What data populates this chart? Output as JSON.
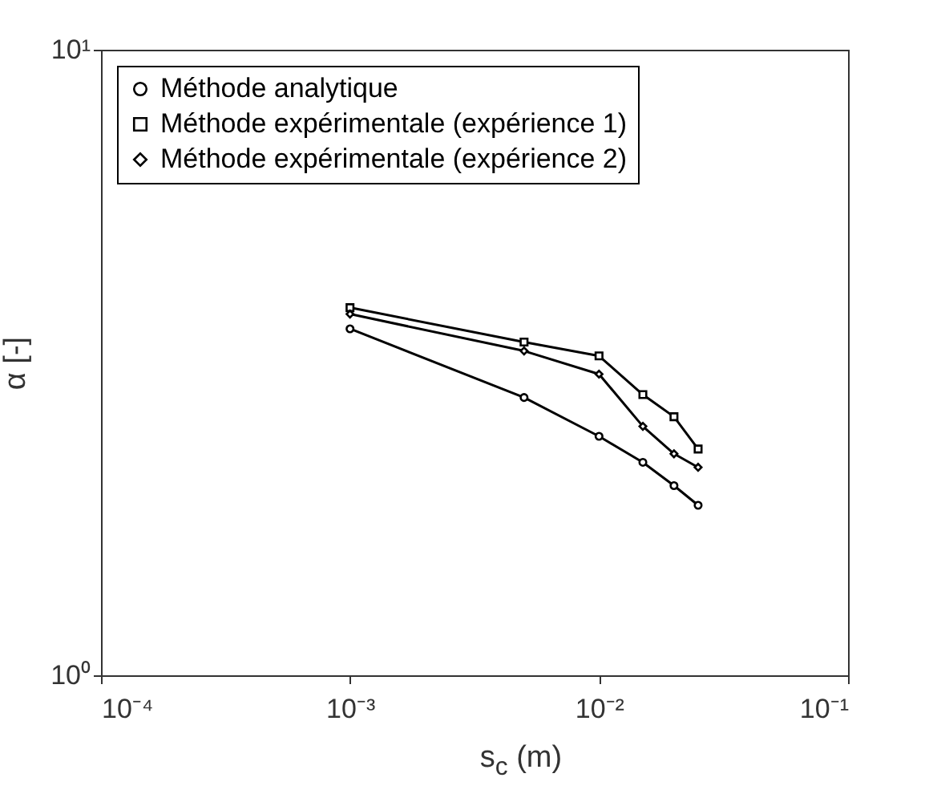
{
  "chart_data": {
    "type": "line",
    "xlabel": "s$_{c}$ (m)",
    "ylabel": "α [-]",
    "log": "xy",
    "grid": false,
    "legend": "top left",
    "xlim": [
      0.0001,
      0.1
    ],
    "ylim": [
      1,
      10
    ],
    "xticks": [
      {
        "value": 0.0001,
        "label": "10⁻⁴"
      },
      {
        "value": 0.001,
        "label": "10⁻³"
      },
      {
        "value": 0.01,
        "label": "10⁻²"
      },
      {
        "value": 0.1,
        "label": "10⁻¹"
      }
    ],
    "yticks": [
      {
        "value": 1,
        "label": "10⁰"
      },
      {
        "value": 10,
        "label": "10¹"
      }
    ],
    "x": [
      0.001,
      0.005,
      0.01,
      0.015,
      0.02,
      0.025
    ],
    "series": [
      {
        "name": "Méthode analytique",
        "color": "#000000",
        "marker": "circle",
        "values": [
          3.58,
          2.78,
          2.41,
          2.19,
          2.01,
          1.87
        ]
      },
      {
        "name": "Méthode expérimentale (expérience 1)",
        "color": "#000000",
        "marker": "square",
        "values": [
          3.87,
          3.41,
          3.24,
          2.81,
          2.59,
          2.3
        ]
      },
      {
        "name": "Méthode expérimentale (expérience 2)",
        "color": "#000000",
        "marker": "diamond",
        "values": [
          3.78,
          3.3,
          3.03,
          2.5,
          2.26,
          2.15
        ]
      }
    ]
  }
}
